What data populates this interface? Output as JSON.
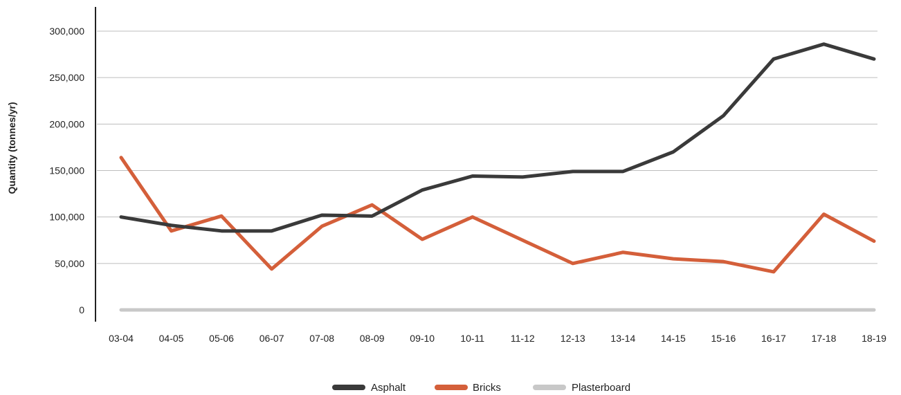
{
  "chart_data": {
    "type": "line",
    "title": "",
    "xlabel": "",
    "ylabel": "Quantity (tonnes/yr)",
    "categories": [
      "03-04",
      "04-05",
      "05-06",
      "06-07",
      "07-08",
      "08-09",
      "09-10",
      "10-11",
      "11-12",
      "12-13",
      "13-14",
      "14-15",
      "15-16",
      "16-17",
      "17-18",
      "18-19"
    ],
    "ylim": [
      0,
      300000
    ],
    "yticks": [
      0,
      50000,
      100000,
      150000,
      200000,
      250000,
      300000
    ],
    "ytick_labels": [
      "0",
      "50,000",
      "100,000",
      "150,000",
      "200,000",
      "250,000",
      "300,000"
    ],
    "grid": true,
    "legend": "bottom",
    "series": [
      {
        "name": "Asphalt",
        "color": "#3a3a3a",
        "values": [
          100000,
          91000,
          85000,
          85000,
          102000,
          101000,
          129000,
          144000,
          143000,
          149000,
          149000,
          170000,
          209000,
          270000,
          286000,
          270000
        ]
      },
      {
        "name": "Bricks",
        "color": "#d45f3a",
        "values": [
          164000,
          85000,
          101000,
          44000,
          90000,
          113000,
          76000,
          100000,
          75000,
          50000,
          62000,
          55000,
          52000,
          41000,
          103000,
          74000
        ]
      },
      {
        "name": "Plasterboard",
        "color": "#c8c8c8",
        "values": [
          0,
          0,
          0,
          0,
          0,
          0,
          0,
          0,
          0,
          0,
          0,
          0,
          0,
          0,
          0,
          0
        ]
      }
    ]
  }
}
